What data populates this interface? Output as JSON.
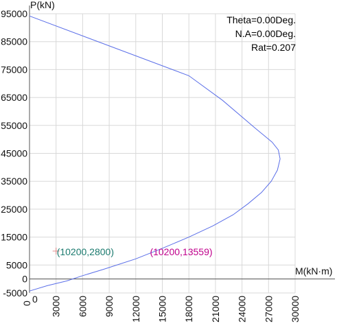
{
  "chart_data": {
    "type": "line",
    "ylabel": "P(kN)",
    "xlabel": "M(kN·m)",
    "xlim": [
      0,
      30000
    ],
    "ylim": [
      -5000,
      95000
    ],
    "x_ticks": [
      3000,
      6000,
      9000,
      12000,
      15000,
      18000,
      21000,
      24000,
      27000,
      30000
    ],
    "x_origin_label": "0",
    "x_origin_label_rotated": "0",
    "y_ticks": [
      -5000,
      0,
      5000,
      15000,
      25000,
      35000,
      45000,
      55000,
      65000,
      75000,
      85000,
      95000
    ],
    "grid": true,
    "info_lines": [
      "Theta=0.00Deg.",
      "N.A=0.00Deg.",
      "Rat=0.207"
    ],
    "series": [
      {
        "points": [
          [
            0,
            94200
          ],
          [
            18000,
            72800
          ],
          [
            21800,
            64000
          ],
          [
            25500,
            54000
          ],
          [
            27400,
            49000
          ],
          [
            28100,
            46200
          ],
          [
            28300,
            43000
          ],
          [
            28000,
            39000
          ],
          [
            27300,
            35000
          ],
          [
            26200,
            31000
          ],
          [
            24700,
            27000
          ],
          [
            23000,
            23000
          ],
          [
            20700,
            19000
          ],
          [
            18000,
            15000
          ],
          [
            15000,
            11000
          ],
          [
            12000,
            7200
          ],
          [
            8400,
            3500
          ],
          [
            6000,
            1200
          ],
          [
            4200,
            -700
          ],
          [
            2000,
            -2400
          ],
          [
            0,
            -4300
          ]
        ]
      }
    ],
    "annotations": [
      {
        "text": "(10200,2800)",
        "x": 3000,
        "y": 10000,
        "color": "#1a7a6e",
        "marker": true
      },
      {
        "text": "(10200,13559)",
        "x": 13600,
        "y": 10000,
        "color": "#c0008c",
        "marker": false
      }
    ],
    "colors": {
      "curve": "#5a6ee8",
      "grid": "#d8d8d8",
      "axis": "#555555",
      "marker": "#e08a8a"
    }
  }
}
